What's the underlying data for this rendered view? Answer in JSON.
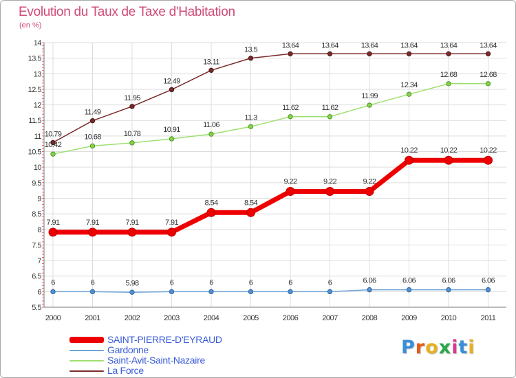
{
  "header": {
    "title": "Evolution du Taux de Taxe d'Habitation",
    "unit": "(en %)"
  },
  "logo": {
    "text": "Proxiti",
    "colors": [
      "#3a8fd8",
      "#e85a1a",
      "#e8b020",
      "#2aa84a",
      "#d83a8a",
      "#3a8fd8",
      "#e8b020"
    ]
  },
  "chart_data": {
    "type": "line",
    "x": [
      "2000",
      "2001",
      "2002",
      "2003",
      "2004",
      "2005",
      "2006",
      "2007",
      "2008",
      "2009",
      "2010",
      "2011"
    ],
    "ylim": [
      5.5,
      14
    ],
    "yticks": [
      "5.5",
      "6",
      "6.5",
      "7",
      "7.5",
      "8",
      "8.5",
      "9",
      "9.5",
      "10",
      "10.5",
      "11",
      "11.5",
      "12",
      "12.5",
      "13",
      "13.5",
      "14"
    ],
    "grid": true,
    "legend_position": "bottom-left",
    "series": [
      {
        "name": "SAINT-PIERRE-D'EYRAUD",
        "color": "#ee0000",
        "values": [
          7.91,
          7.91,
          7.91,
          7.91,
          8.54,
          8.54,
          9.22,
          9.22,
          9.22,
          10.22,
          10.22,
          10.22
        ],
        "labels": [
          "7.91",
          "7.91",
          "7.91",
          "7.91",
          "8.54",
          "8.54",
          "9.22",
          "9.22",
          "9.22",
          "10.22",
          "10.22",
          "10.22"
        ]
      },
      {
        "name": "Gardonne",
        "color": "#6fa3d6",
        "values": [
          6,
          6,
          5.98,
          6,
          6,
          6,
          6,
          6,
          6.06,
          6.06,
          6.06,
          6.06
        ],
        "labels": [
          "6",
          "6",
          "5.98",
          "6",
          "6",
          "6",
          "6",
          "6",
          "6.06",
          "6.06",
          "6.06",
          "6.06"
        ]
      },
      {
        "name": "Saint-Avit-Saint-Nazaire",
        "color": "#9ee070",
        "values": [
          10.42,
          10.68,
          10.78,
          10.91,
          11.06,
          11.3,
          11.62,
          11.62,
          11.99,
          12.34,
          12.68,
          12.68
        ],
        "labels": [
          "10.42",
          "10.68",
          "10.78",
          "10.91",
          "11.06",
          "11.3",
          "11.62",
          "11.62",
          "11.99",
          "12.34",
          "12.68",
          "12.68"
        ]
      },
      {
        "name": "La Force",
        "color": "#7a2a2a",
        "values": [
          10.79,
          11.49,
          11.95,
          12.49,
          13.11,
          13.5,
          13.64,
          13.64,
          13.64,
          13.64,
          13.64,
          13.64
        ],
        "labels": [
          "10.79",
          "11.49",
          "11.95",
          "12.49",
          "13.11",
          "13.5",
          "13.64",
          "13.64",
          "13.64",
          "13.64",
          "13.64",
          "13.64"
        ]
      }
    ]
  }
}
